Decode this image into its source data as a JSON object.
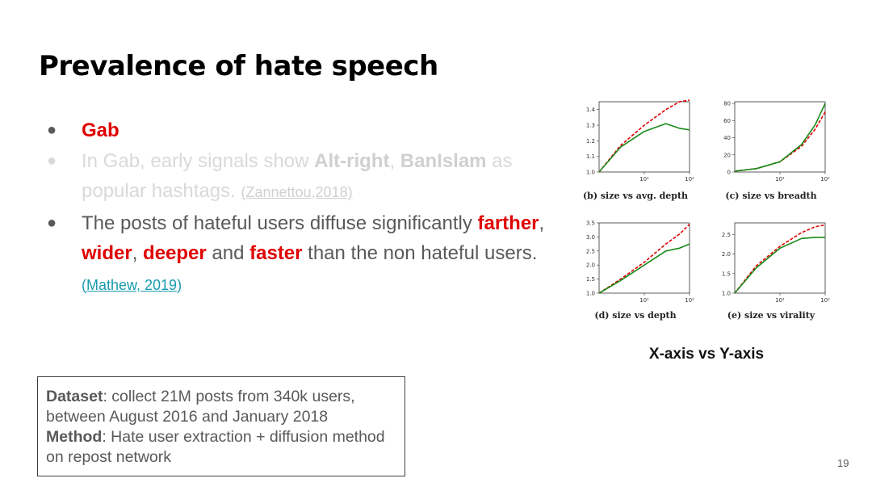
{
  "slide": {
    "title": "Prevalence of hate speech",
    "page_number": "19"
  },
  "bullets": {
    "b1": {
      "text": "Gab"
    },
    "b2": {
      "pre": "In Gab, early signals show ",
      "tag1": "Alt-right",
      "comma": ", ",
      "tag2": "BanIslam",
      "post": " as popular hashtags. ",
      "citation": "(Zannettou,2018)"
    },
    "b3": {
      "pre": "The posts of hateful users diffuse significantly ",
      "w1": "farther",
      "sep1": ", ",
      "w2": "wider",
      "sep2": ", ",
      "w3": "deeper",
      "mid": " and ",
      "w4": "faster",
      "post": " than the non hateful users. ",
      "citation": "(Mathew, 2019)"
    }
  },
  "infobox": {
    "dataset_label": "Dataset",
    "dataset_text": ": collect 21M posts from 340k users, between August 2016 and January 2018",
    "method_label": "Method",
    "method_text": ": Hate user extraction + diffusion method on repost network"
  },
  "figure": {
    "label": "X-axis vs Y-axis",
    "colors": {
      "hateful": "#e00000",
      "non_hateful": "#1a8a1a"
    }
  },
  "chart_data": [
    {
      "type": "line",
      "title": "(b) size vs avg. depth",
      "xscale": "log",
      "xticks": [
        "10¹",
        "10²"
      ],
      "yticks": [
        "1.0",
        "1.1",
        "1.2",
        "1.3",
        "1.4"
      ],
      "ylim": [
        1.0,
        1.45
      ],
      "x": [
        1,
        3,
        10,
        30,
        60,
        100
      ],
      "series": [
        {
          "color": "#e00000",
          "style": "dashed",
          "values": [
            1.0,
            1.17,
            1.3,
            1.4,
            1.45,
            1.46
          ]
        },
        {
          "color": "#1a8a1a",
          "style": "solid",
          "values": [
            1.0,
            1.16,
            1.26,
            1.31,
            1.28,
            1.27
          ]
        }
      ]
    },
    {
      "type": "line",
      "title": "(c) size vs breadth",
      "xscale": "log",
      "xticks": [
        "10¹",
        "10²"
      ],
      "yticks": [
        "0",
        "20",
        "40",
        "60",
        "80"
      ],
      "ylim": [
        0,
        82
      ],
      "x": [
        1,
        3,
        10,
        30,
        60,
        100
      ],
      "series": [
        {
          "color": "#e00000",
          "style": "dashed",
          "values": [
            1,
            4,
            12,
            30,
            50,
            70
          ]
        },
        {
          "color": "#1a8a1a",
          "style": "solid",
          "values": [
            1,
            4,
            12,
            32,
            55,
            80
          ]
        }
      ]
    },
    {
      "type": "line",
      "title": "(d) size vs depth",
      "xscale": "log",
      "xticks": [
        "10¹",
        "10²"
      ],
      "yticks": [
        "1.0",
        "1.5",
        "2.0",
        "2.5",
        "3.0",
        "3.5"
      ],
      "ylim": [
        1.0,
        3.5
      ],
      "x": [
        1,
        3,
        10,
        30,
        60,
        100
      ],
      "series": [
        {
          "color": "#e00000",
          "style": "dashed",
          "values": [
            1.0,
            1.5,
            2.1,
            2.75,
            3.1,
            3.45
          ]
        },
        {
          "color": "#1a8a1a",
          "style": "solid",
          "values": [
            1.0,
            1.45,
            2.0,
            2.5,
            2.6,
            2.75
          ]
        }
      ]
    },
    {
      "type": "line",
      "title": "(e) size vs virality",
      "xscale": "log",
      "xticks": [
        "10¹",
        "10²"
      ],
      "yticks": [
        "1.0",
        "1.5",
        "2.0",
        "2.5"
      ],
      "ylim": [
        1.0,
        2.8
      ],
      "x": [
        1,
        3,
        10,
        30,
        60,
        100
      ],
      "series": [
        {
          "color": "#e00000",
          "style": "dashed",
          "values": [
            1.0,
            1.7,
            2.2,
            2.55,
            2.7,
            2.75
          ]
        },
        {
          "color": "#1a8a1a",
          "style": "solid",
          "values": [
            1.0,
            1.65,
            2.15,
            2.4,
            2.43,
            2.43
          ]
        }
      ]
    }
  ]
}
